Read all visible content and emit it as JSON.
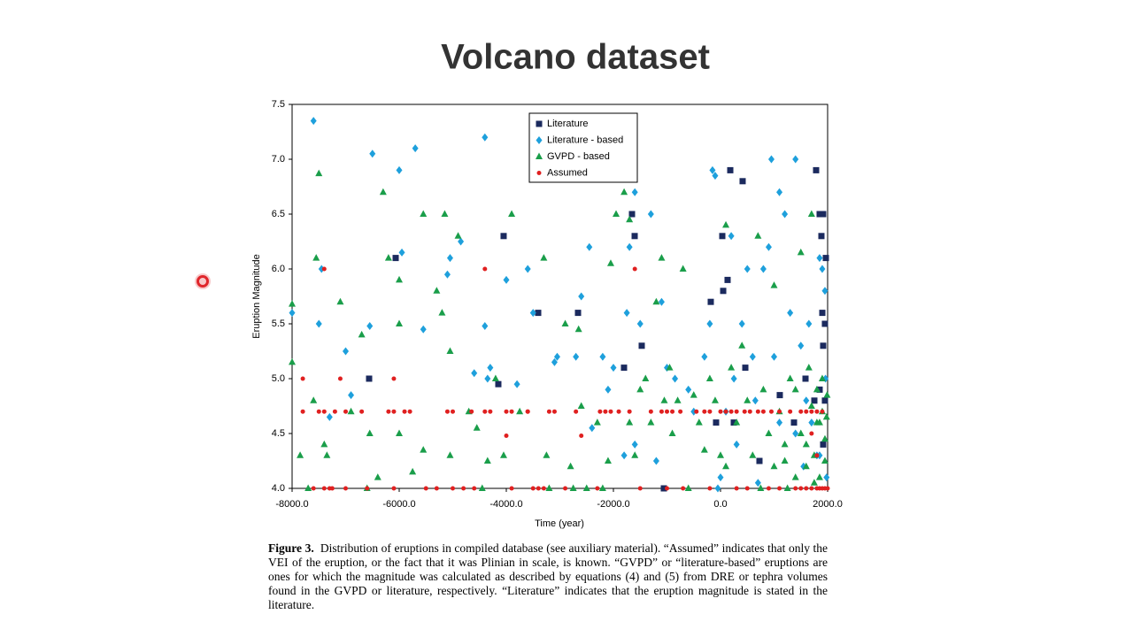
{
  "title": "Volcano dataset",
  "chart_data": {
    "type": "scatter",
    "xlabel": "Time (year)",
    "ylabel": "Eruption Magnitude",
    "xlim": [
      -8000,
      2000
    ],
    "ylim": [
      4,
      7.5
    ],
    "xticks": [
      {
        "value": -8000,
        "label": "-8000.0"
      },
      {
        "value": -6000,
        "label": "-6000.0"
      },
      {
        "value": -4000,
        "label": "-4000.0"
      },
      {
        "value": -2000,
        "label": "-2000.0"
      },
      {
        "value": 0,
        "label": "0.0"
      },
      {
        "value": 2000,
        "label": "2000.0"
      }
    ],
    "yticks": [
      {
        "value": 4,
        "label": "4.0"
      },
      {
        "value": 4.5,
        "label": "4.5"
      },
      {
        "value": 5,
        "label": "5.0"
      },
      {
        "value": 5.5,
        "label": "5.5"
      },
      {
        "value": 6,
        "label": "6.0"
      },
      {
        "value": 6.5,
        "label": "6.5"
      },
      {
        "value": 7,
        "label": "7.0"
      },
      {
        "value": 7.5,
        "label": "7.5"
      }
    ],
    "legend": "top-center",
    "series": [
      {
        "name": "Literature",
        "color": "#1b2a5e",
        "marker": "square",
        "x": [
          -6066,
          -6562,
          -4050,
          -4149,
          -3405,
          -2661,
          -1802,
          -1653,
          -1603,
          -1471,
          -1058,
          -182,
          -83,
          33,
          132,
          182,
          248,
          50,
          413,
          463,
          727,
          1107,
          1372,
          1587,
          1785,
          1851,
          1917,
          1884,
          1967,
          1901,
          1950,
          1917,
          1851,
          1950,
          1752,
          1917
        ],
        "values": [
          6.1,
          5.0,
          6.3,
          4.95,
          5.6,
          5.6,
          5.1,
          6.5,
          6.3,
          5.3,
          4.0,
          5.7,
          4.6,
          6.3,
          5.9,
          6.9,
          4.6,
          5.8,
          6.8,
          5.1,
          4.25,
          4.85,
          4.6,
          5.0,
          6.9,
          6.5,
          6.5,
          6.3,
          6.1,
          5.6,
          5.5,
          5.3,
          4.9,
          4.8,
          4.8,
          4.4
        ]
      },
      {
        "name": "Literature - based",
        "color": "#1ea0dc",
        "marker": "diamond",
        "x": [
          -8000,
          -7600,
          -7450,
          -7500,
          -7300,
          -7000,
          -6900,
          -6550,
          -6500,
          -6000,
          -5950,
          -5700,
          -5550,
          -5100,
          -5050,
          -4850,
          -4600,
          -4400,
          -4400,
          -4350,
          -4300,
          -4000,
          -3800,
          -3600,
          -3500,
          -3100,
          -3050,
          -2700,
          -2600,
          -2450,
          -2400,
          -2200,
          -2100,
          -2000,
          -1800,
          -1750,
          -1700,
          -1600,
          -1600,
          -1500,
          -1300,
          -1200,
          -1100,
          -1000,
          -850,
          -600,
          -500,
          -300,
          -200,
          -150,
          -100,
          0,
          100,
          200,
          250,
          400,
          500,
          600,
          650,
          800,
          900,
          950,
          1000,
          1100,
          1200,
          1300,
          1400,
          1500,
          1550,
          1600,
          1650,
          1700,
          1800,
          1850,
          1900,
          1950,
          1960,
          1980,
          1850,
          1400,
          700,
          300,
          -50,
          1100
        ],
        "values": [
          5.6,
          7.35,
          6.0,
          5.5,
          4.65,
          5.25,
          4.85,
          5.48,
          7.05,
          6.9,
          6.15,
          7.1,
          5.45,
          5.95,
          6.1,
          6.25,
          5.05,
          7.2,
          5.48,
          5.0,
          5.1,
          5.9,
          4.95,
          6.0,
          5.6,
          5.15,
          5.2,
          5.2,
          5.75,
          6.2,
          4.55,
          5.2,
          4.9,
          5.1,
          4.3,
          5.6,
          6.2,
          6.7,
          4.4,
          5.5,
          6.5,
          4.25,
          5.7,
          5.1,
          5.0,
          4.9,
          4.7,
          5.2,
          5.5,
          6.9,
          6.85,
          4.1,
          4.7,
          6.3,
          5.0,
          5.5,
          6.0,
          5.2,
          4.8,
          6.0,
          6.2,
          7.0,
          5.2,
          6.7,
          6.5,
          5.6,
          7.0,
          5.3,
          4.2,
          4.8,
          5.5,
          4.6,
          4.3,
          6.1,
          6.0,
          5.8,
          5.0,
          4.1,
          4.3,
          4.5,
          4.05,
          4.4,
          4.0,
          4.6
        ]
      },
      {
        "name": "GVPD - based",
        "color": "#1a9e4a",
        "marker": "triangle",
        "x": [
          -8000,
          -8000,
          -7850,
          -7700,
          -7600,
          -7550,
          -7500,
          -7400,
          -7350,
          -7100,
          -6900,
          -6700,
          -6600,
          -6550,
          -6400,
          -6300,
          -6200,
          -6000,
          -6000,
          -6000,
          -5750,
          -5550,
          -5550,
          -5300,
          -5200,
          -5150,
          -5050,
          -5050,
          -4900,
          -4700,
          -4550,
          -4450,
          -4350,
          -4200,
          -4050,
          -3900,
          -3750,
          -3300,
          -3250,
          -3200,
          -2900,
          -2800,
          -2750,
          -2650,
          -2600,
          -2500,
          -2300,
          -2200,
          -2100,
          -2050,
          -1950,
          -1800,
          -1700,
          -1700,
          -1600,
          -1500,
          -1400,
          -1300,
          -1200,
          -1100,
          -1050,
          -950,
          -900,
          -800,
          -700,
          -600,
          -500,
          -400,
          -300,
          -200,
          -100,
          0,
          100,
          100,
          200,
          300,
          400,
          500,
          600,
          700,
          750,
          800,
          900,
          1000,
          1000,
          1100,
          1200,
          1250,
          1300,
          1400,
          1500,
          1500,
          1600,
          1650,
          1700,
          1700,
          1750,
          1800,
          1800,
          1850,
          1900,
          1900,
          1950,
          1950,
          1980,
          1990,
          1850,
          1750,
          1600,
          1400,
          1200
        ],
        "values": [
          5.15,
          5.68,
          4.3,
          4.0,
          4.8,
          6.1,
          6.87,
          4.4,
          4.3,
          5.7,
          4.7,
          5.4,
          4.0,
          4.5,
          4.1,
          6.7,
          6.1,
          5.9,
          5.5,
          4.5,
          4.15,
          6.5,
          4.35,
          5.8,
          5.6,
          6.5,
          5.25,
          4.3,
          6.3,
          4.7,
          4.55,
          4.0,
          4.25,
          5.0,
          4.3,
          6.5,
          4.7,
          6.1,
          4.3,
          4.0,
          5.5,
          4.2,
          4.0,
          5.45,
          4.75,
          4.0,
          4.6,
          4.0,
          4.25,
          6.05,
          6.5,
          6.7,
          6.45,
          4.6,
          4.3,
          4.9,
          5.0,
          4.6,
          5.7,
          6.1,
          4.8,
          5.1,
          4.5,
          4.8,
          6.0,
          4.0,
          4.85,
          4.6,
          4.35,
          5.0,
          4.8,
          4.3,
          6.4,
          4.2,
          5.1,
          4.6,
          5.3,
          4.8,
          4.3,
          6.3,
          4.0,
          4.9,
          4.5,
          5.85,
          4.2,
          4.7,
          4.4,
          4.0,
          5.0,
          4.9,
          4.5,
          6.15,
          4.2,
          5.1,
          6.5,
          4.75,
          4.3,
          4.6,
          4.9,
          4.1,
          4.7,
          5.0,
          4.45,
          4.25,
          4.65,
          4.85,
          4.6,
          4.05,
          4.4,
          4.1,
          4.25
        ]
      },
      {
        "name": "Assumed",
        "color": "#e02020",
        "marker": "circle",
        "x": [
          -7800,
          -7500,
          -7400,
          -7200,
          -7000,
          -6700,
          -6200,
          -6100,
          -5900,
          -5800,
          -5100,
          -5000,
          -4650,
          -4400,
          -4300,
          -4000,
          -3900,
          -3600,
          -3200,
          -3100,
          -2700,
          -2250,
          -2150,
          -2050,
          -1900,
          -1700,
          -1300,
          -1100,
          -1000,
          -900,
          -750,
          -450,
          -300,
          -200,
          0,
          100,
          200,
          300,
          450,
          550,
          700,
          800,
          950,
          1100,
          1300,
          1500,
          1600,
          1700,
          1800,
          1900,
          -7600,
          -7400,
          -7300,
          -7250,
          -7000,
          -6600,
          -6100,
          -5500,
          -5300,
          -5000,
          -4800,
          -4600,
          -3900,
          -3500,
          -3400,
          -3300,
          -2900,
          -2300,
          -1500,
          -1000,
          -700,
          -200,
          300,
          500,
          900,
          1100,
          1400,
          1500,
          1600,
          1700,
          1800,
          1850,
          1900,
          1950,
          2000,
          -7800,
          -7400,
          -7100,
          -6100,
          -4400,
          -4000,
          -3600,
          -2600,
          -1600,
          1700,
          1800
        ],
        "values": [
          4.7,
          4.7,
          4.7,
          4.7,
          4.7,
          4.7,
          4.7,
          4.7,
          4.7,
          4.7,
          4.7,
          4.7,
          4.7,
          4.7,
          4.7,
          4.7,
          4.7,
          4.7,
          4.7,
          4.7,
          4.7,
          4.7,
          4.7,
          4.7,
          4.7,
          4.7,
          4.7,
          4.7,
          4.7,
          4.7,
          4.7,
          4.7,
          4.7,
          4.7,
          4.7,
          4.7,
          4.7,
          4.7,
          4.7,
          4.7,
          4.7,
          4.7,
          4.7,
          4.7,
          4.7,
          4.7,
          4.7,
          4.7,
          4.7,
          4.7,
          4.0,
          4.0,
          4.0,
          4.0,
          4.0,
          4.0,
          4.0,
          4.0,
          4.0,
          4.0,
          4.0,
          4.0,
          4.0,
          4.0,
          4.0,
          4.0,
          4.0,
          4.0,
          4.0,
          4.0,
          4.0,
          4.0,
          4.0,
          4.0,
          4.0,
          4.0,
          4.0,
          4.0,
          4.0,
          4.0,
          4.0,
          4.0,
          4.0,
          4.0,
          4.0,
          5.0,
          6.0,
          5.0,
          5.0,
          6.0,
          4.48,
          4.7,
          4.48,
          6.0,
          4.5,
          4.3
        ]
      }
    ]
  },
  "caption": {
    "label": "Figure 3.",
    "text": "Distribution of eruptions in compiled database (see auxiliary material). “Assumed” indicates that only the VEI of the eruption, or the fact that it was Plinian in scale, is known. “GVPD” or “literature-based” eruptions are ones for which the magnitude was calculated as described by equations (4) and (5) from DRE or tephra volumes found in the GVPD or literature, respectively. “Literature” indicates that the eruption magnitude is stated in the literature."
  }
}
